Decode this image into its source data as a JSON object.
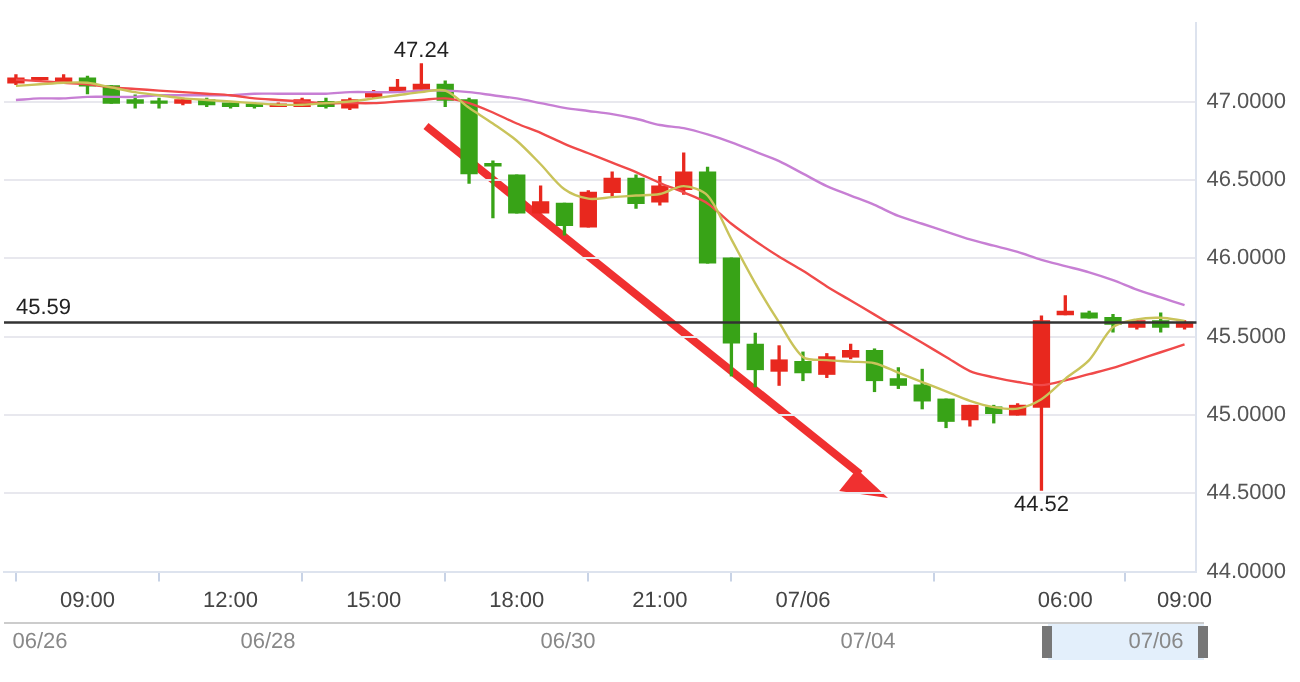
{
  "chart_data": {
    "type": "candlestick",
    "categories": [
      null,
      null,
      null,
      "09:00",
      null,
      null,
      null,
      null,
      null,
      "12:00",
      null,
      null,
      null,
      null,
      null,
      "15:00",
      null,
      null,
      null,
      null,
      null,
      "18:00",
      null,
      null,
      null,
      null,
      null,
      "21:00",
      null,
      null,
      null,
      null,
      null,
      "07/06",
      null,
      null,
      null,
      null,
      null,
      null,
      null,
      null,
      null,
      null,
      "06:00",
      null,
      null,
      null,
      null,
      "09:00"
    ],
    "ohlc": [
      [
        47.12,
        47.17,
        47.11,
        47.15
      ],
      [
        47.14,
        47.15,
        47.13,
        47.14
      ],
      [
        47.12,
        47.17,
        47.12,
        47.15
      ],
      [
        47.15,
        47.16,
        47.05,
        47.1
      ],
      [
        47.1,
        47.1,
        46.99,
        46.99
      ],
      [
        47.01,
        47.04,
        46.96,
        46.99
      ],
      [
        47.0,
        47.02,
        46.96,
        46.99
      ],
      [
        46.99,
        47.02,
        46.98,
        47.01
      ],
      [
        47.01,
        47.02,
        46.97,
        46.98
      ],
      [
        46.99,
        46.99,
        46.96,
        46.97
      ],
      [
        46.98,
        46.99,
        46.96,
        46.97
      ],
      [
        46.97,
        46.99,
        46.97,
        46.98
      ],
      [
        46.97,
        47.02,
        46.97,
        47.01
      ],
      [
        47.0,
        47.02,
        46.96,
        46.97
      ],
      [
        46.96,
        47.02,
        46.95,
        47.01
      ],
      [
        47.03,
        47.07,
        47.02,
        47.06
      ],
      [
        47.07,
        47.14,
        47.06,
        47.09
      ],
      [
        47.08,
        47.24,
        47.08,
        47.11
      ],
      [
        47.11,
        47.13,
        46.97,
        47.01
      ],
      [
        47.01,
        47.02,
        46.48,
        46.54
      ],
      [
        46.6,
        46.62,
        46.26,
        46.59
      ],
      [
        46.53,
        46.53,
        46.29,
        46.29
      ],
      [
        46.29,
        46.46,
        46.29,
        46.36
      ],
      [
        46.35,
        46.35,
        46.15,
        46.21
      ],
      [
        46.2,
        46.43,
        46.2,
        46.42
      ],
      [
        46.42,
        46.55,
        46.39,
        46.51
      ],
      [
        46.51,
        46.53,
        46.32,
        46.35
      ],
      [
        46.36,
        46.52,
        46.34,
        46.46
      ],
      [
        46.44,
        46.67,
        46.41,
        46.55
      ],
      [
        46.55,
        46.58,
        45.97,
        45.97
      ],
      [
        46.0,
        46.0,
        45.25,
        45.46
      ],
      [
        45.45,
        45.52,
        45.18,
        45.29
      ],
      [
        45.28,
        45.44,
        45.19,
        45.35
      ],
      [
        45.34,
        45.4,
        45.22,
        45.27
      ],
      [
        45.26,
        45.39,
        45.24,
        45.37
      ],
      [
        45.37,
        45.45,
        45.36,
        45.41
      ],
      [
        45.41,
        45.42,
        45.15,
        45.22
      ],
      [
        45.23,
        45.3,
        45.17,
        45.19
      ],
      [
        45.19,
        45.29,
        45.04,
        45.09
      ],
      [
        45.1,
        45.1,
        44.92,
        44.96
      ],
      [
        44.97,
        45.06,
        44.93,
        45.06
      ],
      [
        45.05,
        45.06,
        44.95,
        45.01
      ],
      [
        45.0,
        45.07,
        45.0,
        45.06
      ],
      [
        45.05,
        45.63,
        44.52,
        45.6
      ],
      [
        45.64,
        45.76,
        45.64,
        45.66
      ],
      [
        45.65,
        45.66,
        45.62,
        45.62
      ],
      [
        45.62,
        45.64,
        45.53,
        45.58
      ],
      [
        45.56,
        45.6,
        45.55,
        45.6
      ],
      [
        45.6,
        45.65,
        45.53,
        45.56
      ],
      [
        45.56,
        45.6,
        45.55,
        45.59
      ]
    ],
    "colors": [
      "#e8281e",
      "#e8281e",
      "#e8281e",
      "#38a317",
      "#38a317",
      "#38a317",
      "#38a317",
      "#e8281e",
      "#38a317",
      "#38a317",
      "#38a317",
      "#e8281e",
      "#e8281e",
      "#38a317",
      "#e8281e",
      "#e8281e",
      "#e8281e",
      "#e8281e",
      "#38a317",
      "#38a317",
      "#38a317",
      "#38a317",
      "#e8281e",
      "#38a317",
      "#e8281e",
      "#e8281e",
      "#38a317",
      "#e8281e",
      "#e8281e",
      "#38a317",
      "#38a317",
      "#38a317",
      "#e8281e",
      "#38a317",
      "#e8281e",
      "#e8281e",
      "#38a317",
      "#38a317",
      "#38a317",
      "#38a317",
      "#e8281e",
      "#38a317",
      "#e8281e",
      "#e8281e",
      "#e8281e",
      "#38a317",
      "#38a317",
      "#e8281e",
      "#38a317",
      "#e8281e"
    ],
    "series": [
      {
        "type": "line",
        "color": "#c9c35a",
        "values": [
          47.1,
          47.11,
          47.12,
          47.12,
          47.09,
          47.06,
          47.04,
          47.02,
          47.01,
          47.0,
          46.99,
          46.98,
          46.98,
          46.99,
          47.0,
          47.02,
          47.04,
          47.06,
          47.07,
          46.96,
          46.86,
          46.75,
          46.6,
          46.44,
          46.38,
          46.39,
          46.4,
          46.41,
          46.46,
          46.4,
          46.12,
          45.84,
          45.59,
          45.37,
          45.35,
          45.34,
          45.33,
          45.27,
          45.21,
          45.15,
          45.09,
          45.05,
          45.04,
          45.1,
          45.23,
          45.35,
          45.56,
          45.61,
          45.62,
          45.6
        ]
      },
      {
        "type": "line",
        "color": "#f04a4a",
        "values": [
          47.14,
          47.13,
          47.12,
          47.11,
          47.09,
          47.08,
          47.07,
          47.06,
          47.05,
          47.04,
          47.02,
          47.01,
          47.0,
          46.99,
          46.99,
          46.99,
          47.0,
          47.01,
          47.02,
          46.99,
          46.93,
          46.86,
          46.8,
          46.73,
          46.67,
          46.61,
          46.55,
          46.48,
          46.42,
          46.35,
          46.22,
          46.11,
          46.01,
          45.92,
          45.82,
          45.73,
          45.64,
          45.55,
          45.46,
          45.37,
          45.28,
          45.24,
          45.21,
          45.19,
          45.22,
          45.26,
          45.3,
          45.35,
          45.4,
          45.45
        ]
      },
      {
        "type": "line",
        "color": "#c77fd4",
        "values": [
          47.01,
          47.02,
          47.02,
          47.03,
          47.03,
          47.03,
          47.04,
          47.04,
          47.04,
          47.04,
          47.05,
          47.05,
          47.05,
          47.05,
          47.06,
          47.06,
          47.06,
          47.07,
          47.07,
          47.06,
          47.04,
          47.02,
          46.99,
          46.96,
          46.94,
          46.92,
          46.89,
          46.85,
          46.83,
          46.79,
          46.74,
          46.68,
          46.62,
          46.54,
          46.46,
          46.4,
          46.34,
          46.27,
          46.22,
          46.17,
          46.12,
          46.08,
          46.04,
          45.99,
          45.95,
          45.91,
          45.86,
          45.8,
          45.75,
          45.7
        ]
      }
    ],
    "ylim": [
      44,
      47.5
    ],
    "yticks": [
      {
        "value": 44,
        "label": "44.0000"
      },
      {
        "value": 44.5,
        "label": "44.5000"
      },
      {
        "value": 45,
        "label": "45.0000"
      },
      {
        "value": 45.5,
        "label": "45.5000"
      },
      {
        "value": 46,
        "label": "46.0000"
      },
      {
        "value": 46.5,
        "label": "46.5000"
      },
      {
        "value": 47,
        "label": "47.0000"
      }
    ],
    "ref_lines": [
      {
        "axis": "y",
        "value": 45.59,
        "label": "45.59",
        "color": "#333333"
      }
    ],
    "annotations": [
      {
        "text": "47.24",
        "y": 47.24
      },
      {
        "text": "44.52",
        "y": 44.52
      },
      "06/26",
      "06/28",
      "06/30",
      "07/04",
      "07/06"
    ],
    "grid": "y",
    "marker": "none",
    "legend": false
  }
}
